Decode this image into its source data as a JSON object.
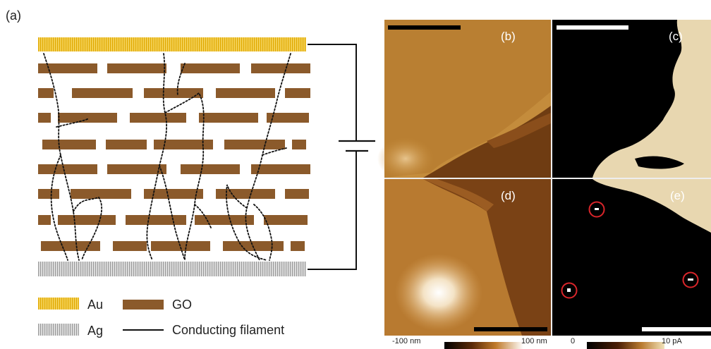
{
  "figure": {
    "panel_a_label": "(a)",
    "panel_labels": [
      "(b)",
      "(c)",
      "(d)",
      "(e)"
    ],
    "legend": {
      "au": "Au",
      "go": "GO",
      "ag": "Ag",
      "filament": "Conducting filament"
    },
    "colorbars": {
      "height_min": "-100 nm",
      "height_max": "100 nm",
      "current_min": "0",
      "current_max": "10 pA"
    },
    "colors": {
      "au": "#f2c230",
      "go": "#8b5a2b",
      "ag": "#b5b5b5",
      "filament": "#111111",
      "circle": "#d9252a",
      "current_high": "#e8d7b0"
    },
    "circled_spot_count": 3
  }
}
